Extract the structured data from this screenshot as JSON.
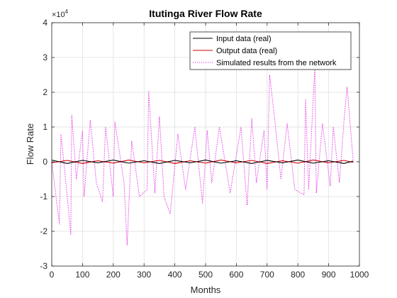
{
  "chart_data": {
    "type": "line",
    "title": "Itutinga River Flow Rate",
    "xlabel": "Months",
    "ylabel": "Flow Rate",
    "y_multiplier_label": "×10",
    "y_multiplier_exponent": "4",
    "xlim": [
      0,
      1000
    ],
    "ylim": [
      -3,
      4
    ],
    "xticks": [
      0,
      100,
      200,
      300,
      400,
      500,
      600,
      700,
      800,
      900,
      1000
    ],
    "yticks": [
      -3,
      -2,
      -1,
      0,
      1,
      2,
      3,
      4
    ],
    "grid": true,
    "legend_position": "top-right",
    "series": [
      {
        "name": "Input data (real)",
        "color": "#000000",
        "style": "solid",
        "x": [
          0,
          50,
          100,
          150,
          200,
          250,
          300,
          350,
          400,
          450,
          500,
          550,
          600,
          650,
          700,
          750,
          800,
          850,
          900,
          950,
          980
        ],
        "y": [
          0.05,
          -0.05,
          0.04,
          -0.03,
          0.05,
          -0.04,
          0.03,
          -0.05,
          0.04,
          -0.03,
          0.05,
          -0.04,
          0.03,
          -0.05,
          0.04,
          -0.03,
          0.05,
          -0.04,
          0.03,
          -0.05,
          0.02
        ]
      },
      {
        "name": "Output data (real)",
        "color": "#cc0000",
        "style": "solid",
        "x": [
          0,
          50,
          100,
          150,
          200,
          250,
          300,
          350,
          400,
          450,
          500,
          550,
          600,
          650,
          700,
          750,
          800,
          850,
          900,
          950,
          980
        ],
        "y": [
          -0.03,
          0.04,
          -0.05,
          0.03,
          -0.04,
          0.05,
          -0.03,
          0.04,
          -0.05,
          0.03,
          -0.04,
          0.05,
          -0.03,
          0.04,
          -0.05,
          0.03,
          -0.04,
          0.05,
          -0.03,
          0.04,
          -0.02
        ]
      },
      {
        "name": "Simulated results from the network",
        "color": "#dd00dd",
        "style": "dotted",
        "x": [
          0,
          25,
          30,
          45,
          62,
          65,
          80,
          100,
          105,
          125,
          145,
          165,
          175,
          200,
          205,
          235,
          245,
          260,
          285,
          310,
          315,
          335,
          350,
          365,
          385,
          410,
          435,
          465,
          490,
          505,
          520,
          545,
          580,
          615,
          635,
          650,
          665,
          690,
          700,
          708,
          725,
          745,
          765,
          790,
          820,
          825,
          835,
          855,
          860,
          880,
          905,
          915,
          935,
          950,
          960,
          980
        ],
        "y": [
          0,
          -1.8,
          0.8,
          -0.5,
          -2.1,
          1.35,
          -0.5,
          0.9,
          -1.0,
          1.2,
          -0.6,
          -1.15,
          1.0,
          -1.0,
          1.15,
          -0.6,
          -2.4,
          0.6,
          -1.0,
          -0.8,
          2.05,
          -0.9,
          1.3,
          -1.0,
          -1.5,
          0.8,
          -0.8,
          1.0,
          -1.2,
          0.9,
          -0.6,
          1.0,
          -0.9,
          1.0,
          -1.25,
          1.25,
          -0.6,
          0.9,
          -0.8,
          2.5,
          1.2,
          -0.5,
          1.1,
          -0.8,
          -0.95,
          1.8,
          -0.8,
          2.75,
          -0.9,
          1.1,
          -0.7,
          1.0,
          -0.6,
          1.2,
          2.15,
          0
        ]
      }
    ]
  }
}
